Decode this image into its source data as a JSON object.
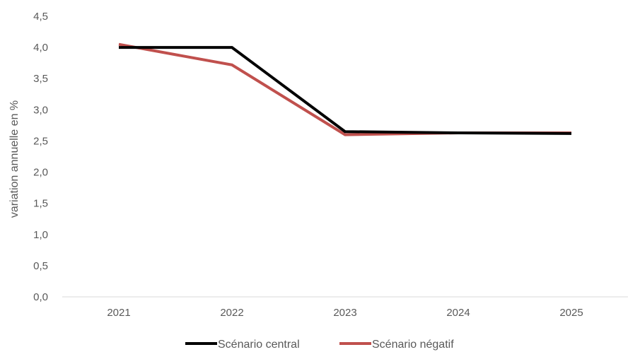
{
  "chart_data": {
    "type": "line",
    "categories": [
      "2021",
      "2022",
      "2023",
      "2024",
      "2025"
    ],
    "ylabel": "variation annuelle en %",
    "xlabel": "",
    "ylim": [
      0,
      4.5
    ],
    "yticks": [
      "0,0",
      "0,5",
      "1,0",
      "1,5",
      "2,0",
      "2,5",
      "3,0",
      "3,5",
      "4,0",
      "4,5"
    ],
    "grid": false,
    "legend": "bottom",
    "series": [
      {
        "name": "Scénario central",
        "color": "#000000",
        "values": [
          4.0,
          4.0,
          2.65,
          2.63,
          2.62
        ]
      },
      {
        "name": "Scénario négatif",
        "color": "#c0504d",
        "values": [
          4.05,
          3.72,
          2.6,
          2.63,
          2.63
        ]
      }
    ]
  }
}
